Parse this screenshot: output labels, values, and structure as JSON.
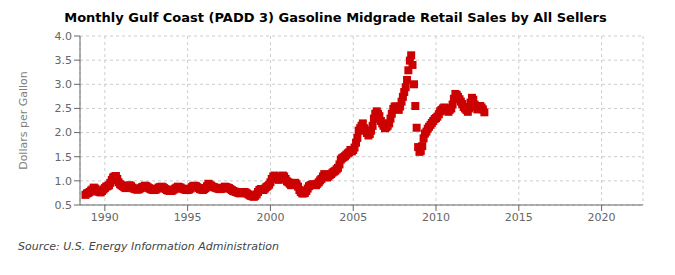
{
  "chart_data": {
    "type": "scatter",
    "title": "Monthly Gulf Coast (PADD 3) Gasoline Midgrade Retail Sales by All Sellers",
    "ylabel": "Dollars per Gallon",
    "annotations": [
      "Source: U.S. Energy Information Administration"
    ],
    "color": "#cc0000",
    "marker": "square",
    "grid": true,
    "xlim": [
      1988.5,
      2022.5
    ],
    "ylim": [
      0.5,
      4.0
    ],
    "xticks": [
      1990,
      1995,
      2000,
      2005,
      2010,
      2015,
      2020
    ],
    "yticks": [
      0.5,
      {
        "value": 1.0,
        "label": "1.0"
      },
      1.5,
      {
        "value": 2.0,
        "label": "2.0"
      },
      2.5,
      {
        "value": 3.0,
        "label": "3.0"
      },
      3.5,
      {
        "value": 4.0,
        "label": "4.0"
      }
    ],
    "x": [
      1988.83,
      1988.92,
      1989.0,
      1989.08,
      1989.17,
      1989.25,
      1989.33,
      1989.42,
      1989.5,
      1989.58,
      1989.67,
      1989.75,
      1989.83,
      1989.92,
      1990.0,
      1990.08,
      1990.17,
      1990.25,
      1990.33,
      1990.42,
      1990.5,
      1990.58,
      1990.67,
      1990.75,
      1990.83,
      1990.92,
      1991.0,
      1991.08,
      1991.17,
      1991.25,
      1991.33,
      1991.42,
      1991.5,
      1991.58,
      1991.67,
      1991.75,
      1991.83,
      1991.92,
      1992.0,
      1992.08,
      1992.17,
      1992.25,
      1992.33,
      1992.42,
      1992.5,
      1992.58,
      1992.67,
      1992.75,
      1992.83,
      1992.92,
      1993.0,
      1993.08,
      1993.17,
      1993.25,
      1993.33,
      1993.42,
      1993.5,
      1993.58,
      1993.67,
      1993.75,
      1993.83,
      1993.92,
      1994.0,
      1994.08,
      1994.17,
      1994.25,
      1994.33,
      1994.42,
      1994.5,
      1994.58,
      1994.67,
      1994.75,
      1994.83,
      1994.92,
      1995.0,
      1995.08,
      1995.17,
      1995.25,
      1995.33,
      1995.42,
      1995.5,
      1995.58,
      1995.67,
      1995.75,
      1995.83,
      1995.92,
      1996.0,
      1996.08,
      1996.17,
      1996.25,
      1996.33,
      1996.42,
      1996.5,
      1996.58,
      1996.67,
      1996.75,
      1996.83,
      1996.92,
      1997.0,
      1997.08,
      1997.17,
      1997.25,
      1997.33,
      1997.42,
      1997.5,
      1997.58,
      1997.67,
      1997.75,
      1997.83,
      1997.92,
      1998.0,
      1998.08,
      1998.17,
      1998.25,
      1998.33,
      1998.42,
      1998.5,
      1998.58,
      1998.67,
      1998.75,
      1998.83,
      1998.92,
      1999.0,
      1999.08,
      1999.17,
      1999.25,
      1999.33,
      1999.42,
      1999.5,
      1999.58,
      1999.67,
      1999.75,
      1999.83,
      1999.92,
      2000.0,
      2000.08,
      2000.17,
      2000.25,
      2000.33,
      2000.42,
      2000.5,
      2000.58,
      2000.67,
      2000.75,
      2000.83,
      2000.92,
      2001.0,
      2001.08,
      2001.17,
      2001.25,
      2001.33,
      2001.42,
      2001.5,
      2001.58,
      2001.67,
      2001.75,
      2001.83,
      2001.92,
      2002.0,
      2002.08,
      2002.17,
      2002.25,
      2002.33,
      2002.42,
      2002.5,
      2002.58,
      2002.67,
      2002.75,
      2002.83,
      2002.92,
      2003.0,
      2003.08,
      2003.17,
      2003.25,
      2003.33,
      2003.42,
      2003.5,
      2003.58,
      2003.67,
      2003.75,
      2003.83,
      2003.92,
      2004.0,
      2004.08,
      2004.17,
      2004.25,
      2004.33,
      2004.42,
      2004.5,
      2004.58,
      2004.67,
      2004.75,
      2004.83,
      2004.92,
      2005.0,
      2005.08,
      2005.17,
      2005.25,
      2005.33,
      2005.42,
      2005.5,
      2005.58,
      2005.67,
      2005.75,
      2005.83,
      2005.92,
      2006.0,
      2006.08,
      2006.17,
      2006.25,
      2006.33,
      2006.42,
      2006.5,
      2006.58,
      2006.67,
      2006.75,
      2006.83,
      2006.92,
      2007.0,
      2007.08,
      2007.17,
      2007.25,
      2007.33,
      2007.42,
      2007.5,
      2007.58,
      2007.67,
      2007.75,
      2007.83,
      2007.92,
      2008.0,
      2008.08,
      2008.17,
      2008.25,
      2008.33,
      2008.42,
      2008.5,
      2008.58,
      2008.67,
      2008.75,
      2008.83,
      2008.92,
      2009.0,
      2009.08,
      2009.17,
      2009.25,
      2009.33,
      2009.42,
      2009.5,
      2009.58,
      2009.67,
      2009.75,
      2009.83,
      2009.92,
      2010.0,
      2010.08,
      2010.17,
      2010.25,
      2010.33,
      2010.42,
      2010.5,
      2010.58,
      2010.67,
      2010.75,
      2010.83,
      2010.92,
      2011.0,
      2011.08,
      2011.17,
      2011.25,
      2011.33,
      2011.42,
      2011.5,
      2011.58,
      2011.67,
      2011.75,
      2011.83,
      2011.92,
      2012.0,
      2012.08,
      2012.17,
      2012.25,
      2012.33,
      2012.42,
      2012.5,
      2012.58,
      2012.67,
      2012.75,
      2012.83,
      2012.92
    ],
    "values": [
      0.71,
      0.74,
      0.75,
      0.77,
      0.8,
      0.82,
      0.86,
      0.84,
      0.8,
      0.78,
      0.77,
      0.76,
      0.79,
      0.82,
      0.85,
      0.88,
      0.89,
      0.91,
      0.96,
      1.02,
      1.07,
      1.09,
      1.1,
      1.04,
      0.97,
      0.93,
      0.91,
      0.89,
      0.87,
      0.85,
      0.87,
      0.89,
      0.91,
      0.89,
      0.86,
      0.84,
      0.83,
      0.82,
      0.82,
      0.83,
      0.85,
      0.87,
      0.88,
      0.9,
      0.89,
      0.87,
      0.85,
      0.83,
      0.82,
      0.81,
      0.81,
      0.82,
      0.84,
      0.86,
      0.87,
      0.88,
      0.87,
      0.85,
      0.83,
      0.81,
      0.8,
      0.79,
      0.79,
      0.8,
      0.82,
      0.84,
      0.86,
      0.88,
      0.87,
      0.86,
      0.84,
      0.83,
      0.82,
      0.81,
      0.81,
      0.82,
      0.84,
      0.87,
      0.89,
      0.9,
      0.89,
      0.87,
      0.85,
      0.83,
      0.82,
      0.81,
      0.83,
      0.85,
      0.89,
      0.94,
      0.92,
      0.9,
      0.88,
      0.87,
      0.86,
      0.85,
      0.84,
      0.83,
      0.83,
      0.84,
      0.86,
      0.88,
      0.87,
      0.86,
      0.85,
      0.83,
      0.81,
      0.79,
      0.78,
      0.77,
      0.76,
      0.75,
      0.74,
      0.75,
      0.76,
      0.77,
      0.76,
      0.74,
      0.72,
      0.7,
      0.69,
      0.68,
      0.67,
      0.69,
      0.72,
      0.77,
      0.81,
      0.83,
      0.82,
      0.81,
      0.84,
      0.87,
      0.89,
      0.92,
      0.97,
      1.04,
      1.09,
      1.11,
      1.07,
      1.04,
      1.02,
      1.04,
      1.09,
      1.11,
      1.09,
      1.04,
      0.99,
      0.97,
      0.94,
      0.91,
      0.92,
      0.94,
      0.96,
      0.93,
      0.88,
      0.81,
      0.77,
      0.74,
      0.74,
      0.75,
      0.79,
      0.84,
      0.89,
      0.91,
      0.92,
      0.93,
      0.92,
      0.91,
      0.94,
      0.97,
      1.01,
      1.04,
      1.09,
      1.14,
      1.11,
      1.07,
      1.09,
      1.12,
      1.14,
      1.17,
      1.19,
      1.21,
      1.24,
      1.27,
      1.34,
      1.44,
      1.47,
      1.49,
      1.51,
      1.54,
      1.57,
      1.59,
      1.64,
      1.61,
      1.64,
      1.69,
      1.79,
      1.89,
      2.04,
      2.09,
      2.14,
      2.19,
      2.09,
      2.04,
      1.99,
      1.94,
      1.97,
      2.04,
      2.14,
      2.29,
      2.39,
      2.44,
      2.39,
      2.34,
      2.24,
      2.19,
      2.14,
      2.09,
      2.11,
      2.14,
      2.19,
      2.29,
      2.39,
      2.49,
      2.54,
      2.54,
      2.49,
      2.47,
      2.54,
      2.64,
      2.74,
      2.84,
      2.94,
      3.09,
      3.29,
      3.49,
      3.6,
      3.4,
      3.0,
      2.55,
      2.1,
      1.7,
      1.6,
      1.62,
      1.72,
      1.88,
      1.98,
      2.02,
      2.08,
      2.12,
      2.16,
      2.2,
      2.24,
      2.28,
      2.3,
      2.33,
      2.38,
      2.44,
      2.47,
      2.5,
      2.52,
      2.5,
      2.46,
      2.43,
      2.47,
      2.5,
      2.58,
      2.7,
      2.8,
      2.78,
      2.74,
      2.69,
      2.64,
      2.59,
      2.53,
      2.5,
      2.47,
      2.43,
      2.5,
      2.62,
      2.72,
      2.68,
      2.58,
      2.53,
      2.48,
      2.5,
      2.55,
      2.52,
      2.48,
      2.42
    ]
  }
}
